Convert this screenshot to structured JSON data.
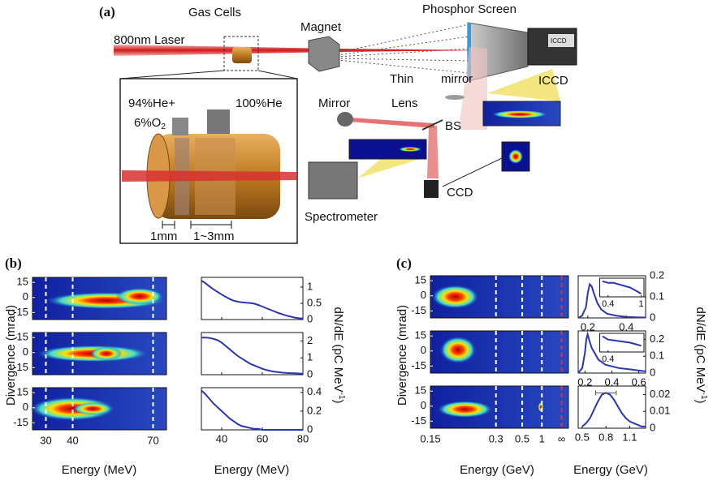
{
  "diagram": {
    "panel_label": "(a)",
    "gas_cells": "Gas Cells",
    "magnet": "Magnet",
    "phosphor_screen": "Phosphor Screen",
    "laser": "800nm Laser",
    "thin": "Thin",
    "mirror_thin": "mirror",
    "lens": "Lens",
    "mirror": "Mirror",
    "bs": "BS",
    "iccd": "ICCD",
    "iccd_cam": "ICCD",
    "ccd": "CCD",
    "spectrometer": "Spectrometer",
    "gas1_line1": "94%He+",
    "gas1_line2_main": "6%O",
    "gas1_line2_sub": "2",
    "gas2": "100%He",
    "len1": "1mm",
    "len2": "1~3mm"
  },
  "panels": {
    "b": {
      "label": "(b)",
      "ylabel": "Divergence (mrad)",
      "xlabel_left": "Energy (MeV)",
      "xlabel_right": "Energy (MeV)",
      "y2label_main": "dN/dE (pC MeV",
      "y2label_sup": "-1",
      "y2label_end": ")"
    },
    "c": {
      "label": "(c)",
      "ylabel": "Divergence (mrad)",
      "xlabel_left": "Energy (GeV)",
      "xlabel_right": "Energy (GeV)",
      "y2label_main": "dN/dE (pC MeV",
      "y2label_sup": "-1",
      "y2label_end": ")"
    }
  },
  "chart_data": [
    {
      "type": "heatmap",
      "xlim": [
        25,
        75
      ],
      "xticks": [
        30,
        40,
        70
      ],
      "ylim": [
        -22,
        20
      ],
      "yticks": [
        15,
        0,
        -15
      ],
      "xtick_labels": false
    },
    {
      "type": "heatmap",
      "xlim": [
        25,
        75
      ],
      "xticks": [
        30,
        40,
        70
      ],
      "ylim": [
        -22,
        20
      ],
      "yticks": [
        15,
        0,
        -15
      ],
      "xtick_labels": false
    },
    {
      "type": "heatmap",
      "xlim": [
        25,
        75
      ],
      "xticks": [
        30,
        40,
        70
      ],
      "ylim": [
        -22,
        20
      ],
      "yticks": [
        15,
        0,
        -15
      ],
      "xtick_labels": true
    },
    {
      "type": "line",
      "color": "#2a35b5",
      "x": [
        30,
        32,
        34,
        36,
        38,
        40,
        42,
        44,
        46,
        48,
        50,
        52,
        54,
        56,
        58,
        60,
        62,
        64,
        66,
        68,
        70,
        72,
        74,
        76,
        78,
        80
      ],
      "values": [
        1.2,
        1.12,
        1.02,
        0.93,
        0.85,
        0.77,
        0.7,
        0.63,
        0.58,
        0.55,
        0.53,
        0.52,
        0.51,
        0.49,
        0.45,
        0.4,
        0.35,
        0.3,
        0.25,
        0.2,
        0.16,
        0.12,
        0.09,
        0.06,
        0.04,
        0.03
      ],
      "xlim": [
        30,
        80
      ],
      "xticks": [
        40,
        60,
        80
      ],
      "ylim": [
        0,
        1.3
      ],
      "yticks": [
        0,
        0.5,
        1
      ],
      "xtick_labels": false
    },
    {
      "type": "line",
      "color": "#2a35b5",
      "x": [
        30,
        32,
        34,
        36,
        38,
        40,
        42,
        44,
        46,
        48,
        50,
        52,
        54,
        56,
        58,
        60,
        62,
        64,
        66,
        68,
        70,
        72,
        74,
        76,
        78,
        80
      ],
      "values": [
        2.2,
        2.2,
        2.18,
        2.12,
        2.05,
        1.9,
        1.7,
        1.5,
        1.3,
        1.1,
        0.95,
        0.8,
        0.65,
        0.55,
        0.45,
        0.35,
        0.28,
        0.22,
        0.18,
        0.15,
        0.12,
        0.1,
        0.09,
        0.08,
        0.07,
        0.06
      ],
      "xlim": [
        30,
        80
      ],
      "xticks": [
        40,
        60,
        80
      ],
      "ylim": [
        0,
        2.5
      ],
      "yticks": [
        0,
        1,
        2
      ],
      "xtick_labels": false
    },
    {
      "type": "line",
      "color": "#2a35b5",
      "x": [
        30,
        32,
        34,
        36,
        38,
        40,
        42,
        44,
        46,
        48,
        50,
        52,
        54,
        56,
        58,
        60,
        62,
        64,
        66,
        68,
        70,
        72,
        74,
        76,
        78,
        80
      ],
      "values": [
        0.42,
        0.38,
        0.33,
        0.28,
        0.24,
        0.2,
        0.16,
        0.12,
        0.09,
        0.06,
        0.04,
        0.03,
        0.02,
        0.01,
        0.01,
        0,
        0,
        0,
        0,
        0,
        0,
        0,
        0,
        0,
        0,
        0
      ],
      "xlim": [
        30,
        80
      ],
      "xticks": [
        40,
        60,
        80
      ],
      "ylim": [
        0,
        0.45
      ],
      "yticks": [
        0,
        0.2,
        0.4
      ],
      "xtick_labels": true
    },
    {
      "type": "heatmap",
      "x_categories": [
        "0.15",
        "0.3",
        "0.5",
        "1",
        "∞"
      ],
      "edge_line_color": "#e03030",
      "ylim": [
        -22,
        20
      ],
      "yticks": [
        15,
        0,
        -15
      ],
      "xtick_labels": false
    },
    {
      "type": "heatmap",
      "x_categories": [
        "0.15",
        "0.3",
        "0.5",
        "1",
        "∞"
      ],
      "edge_line_color": "#e03030",
      "ylim": [
        -22,
        20
      ],
      "yticks": [
        15,
        0,
        -15
      ],
      "xtick_labels": false
    },
    {
      "type": "heatmap",
      "x_categories": [
        "0.15",
        "0.3",
        "0.5",
        "1",
        "∞"
      ],
      "edge_line_color": "#e03030",
      "ylim": [
        -22,
        20
      ],
      "yticks": [
        15,
        0,
        -15
      ],
      "xtick_labels": true
    },
    {
      "type": "line",
      "color": "#2a35b5",
      "x": [
        0.15,
        0.17,
        0.19,
        0.2,
        0.21,
        0.22,
        0.23,
        0.25,
        0.27,
        0.3,
        0.35,
        0.4,
        0.45,
        0.5
      ],
      "values": [
        0,
        0.01,
        0.05,
        0.12,
        0.16,
        0.15,
        0.12,
        0.07,
        0.04,
        0.02,
        0.01,
        0.005,
        0.003,
        0.002
      ],
      "xlim": [
        0.15,
        0.5
      ],
      "xticks": [
        0.2,
        0.4
      ],
      "ylim": [
        0,
        0.2
      ],
      "yticks": [
        0,
        0.1,
        0.2
      ],
      "xtick_labels": true,
      "inset": {
        "x": [
          0.3,
          0.4,
          0.5,
          0.6,
          0.7,
          0.8,
          0.9,
          1.0
        ],
        "values": [
          0.1,
          0.09,
          0.09,
          0.08,
          0.07,
          0.06,
          0.04,
          0.02
        ],
        "xlim": [
          0.25,
          1.05
        ],
        "ylim": [
          0,
          0.12
        ],
        "xticks": [
          0.4,
          1
        ]
      }
    },
    {
      "type": "line",
      "color": "#2a35b5",
      "x": [
        0.15,
        0.18,
        0.2,
        0.21,
        0.22,
        0.23,
        0.25,
        0.3,
        0.35,
        0.4,
        0.45,
        0.5,
        0.55,
        0.6,
        0.65
      ],
      "values": [
        0,
        0.03,
        0.12,
        0.2,
        0.23,
        0.2,
        0.15,
        0.08,
        0.05,
        0.04,
        0.03,
        0.025,
        0.02,
        0.015,
        0.01
      ],
      "xlim": [
        0.15,
        0.65
      ],
      "xticks": [
        0.2,
        0.4,
        0.6
      ],
      "ylim": [
        0,
        0.25
      ],
      "yticks": [
        0,
        0.1,
        0.2
      ],
      "xtick_labels": true,
      "inset": {
        "x": [
          0.3,
          0.4,
          0.5,
          0.6,
          0.7,
          0.8,
          0.9,
          1.0
        ],
        "values": [
          0.1,
          0.08,
          0.075,
          0.07,
          0.065,
          0.06,
          0.05,
          0.04
        ],
        "xlim": [
          0.25,
          1.05
        ],
        "ylim": [
          0,
          0.12
        ],
        "xticks": [
          0.4
        ]
      }
    },
    {
      "type": "line",
      "color": "#2a35b5",
      "x": [
        0.5,
        0.55,
        0.6,
        0.65,
        0.7,
        0.75,
        0.8,
        0.85,
        0.9,
        0.95,
        1.0,
        1.05,
        1.1,
        1.15,
        1.2,
        1.25,
        1.3
      ],
      "values": [
        0.001,
        0.003,
        0.006,
        0.011,
        0.016,
        0.02,
        0.021,
        0.02,
        0.017,
        0.013,
        0.009,
        0.006,
        0.004,
        0.003,
        0.002,
        0.001,
        0.001
      ],
      "xlim": [
        0.45,
        1.3
      ],
      "xticks": [
        0.5,
        0.8,
        1.1
      ],
      "ylim": [
        0,
        0.025
      ],
      "yticks": [
        0,
        0.01,
        0.02
      ],
      "xtick_labels": true,
      "error_bar": {
        "x": 0.8,
        "y": 0.021,
        "xerr": 0.13
      }
    }
  ]
}
